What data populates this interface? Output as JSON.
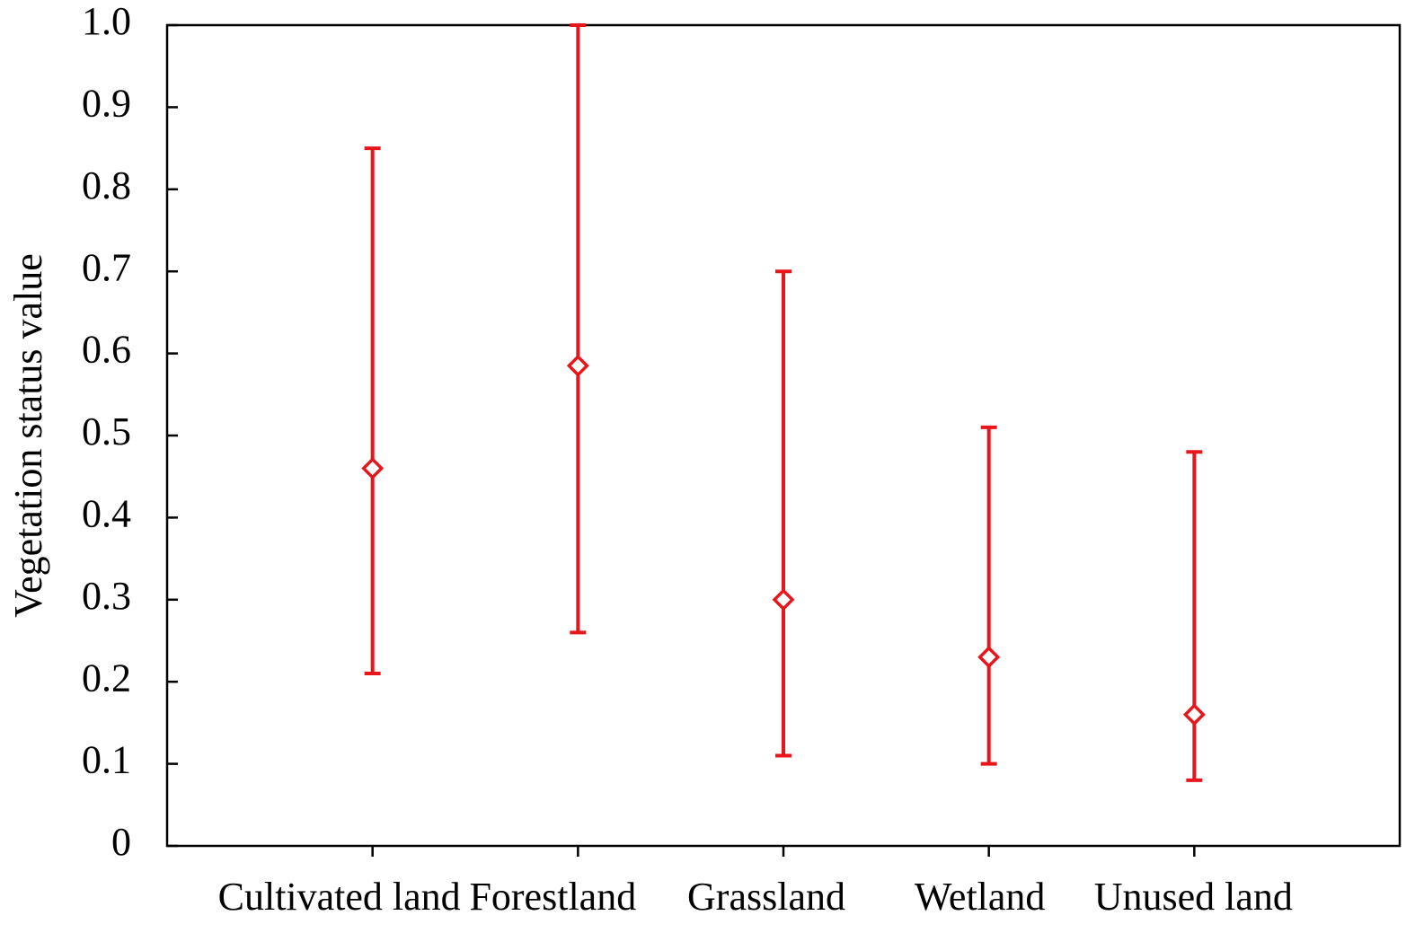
{
  "chart_data": {
    "type": "errorbar",
    "y_label": "Vegetation status value",
    "categories": [
      "Cultivated land",
      "Forestland",
      "Grassland",
      "Wetland",
      "Unused land"
    ],
    "series": [
      {
        "color": "#e8161b",
        "values": [
          0.46,
          0.585,
          0.3,
          0.23,
          0.16
        ],
        "low": [
          0.21,
          0.26,
          0.11,
          0.1,
          0.08
        ],
        "high": [
          0.85,
          1.0,
          0.7,
          0.51,
          0.48
        ]
      }
    ],
    "ylim": [
      0,
      1
    ],
    "yticks": [
      0,
      0.1,
      0.2,
      0.3,
      0.4,
      0.5,
      0.6,
      0.7,
      0.8,
      0.9,
      {
        "value": 1,
        "label": "1.0"
      }
    ]
  }
}
